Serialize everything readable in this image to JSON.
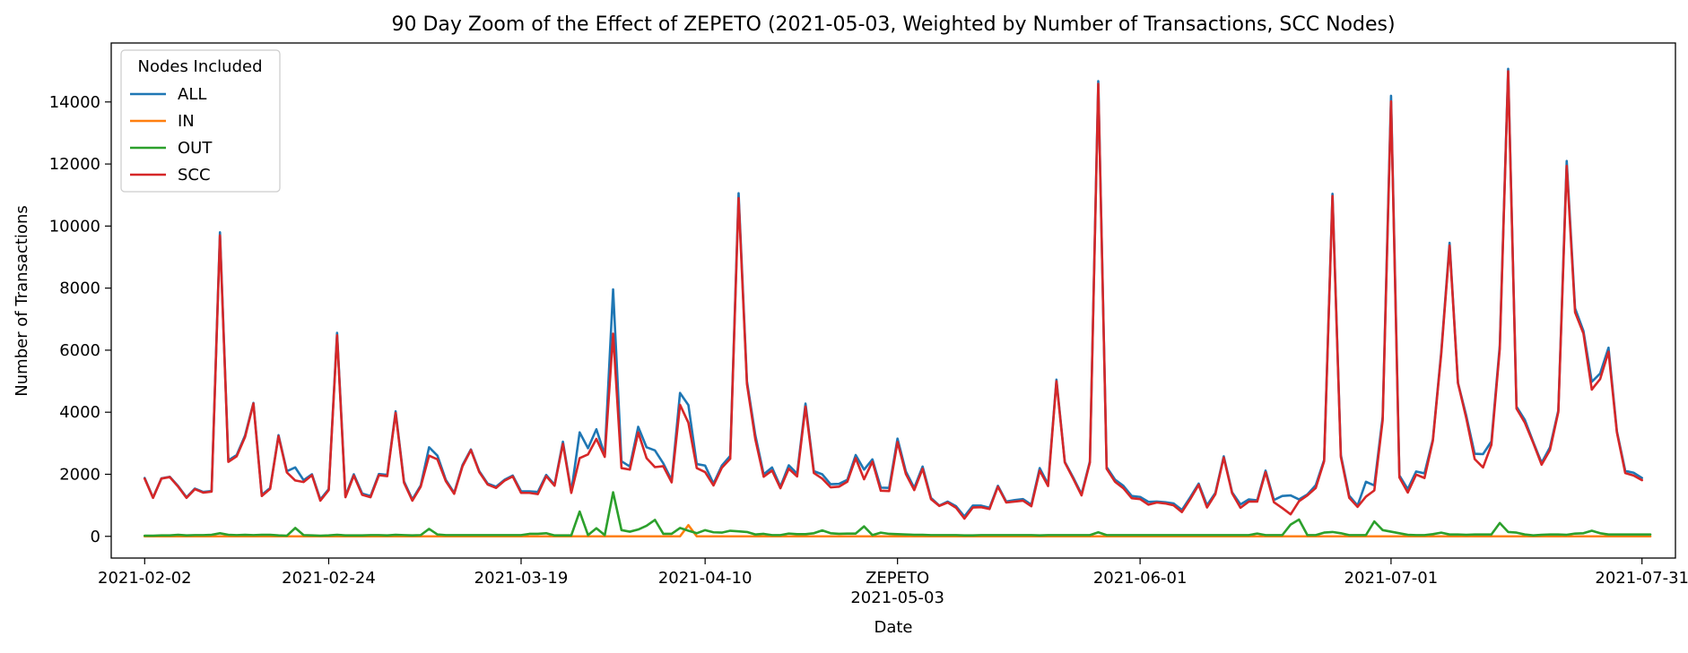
{
  "chart_data": {
    "type": "line",
    "title": "90 Day Zoom of the Effect of ZEPETO (2021-05-03, Weighted by Number of Transactions, SCC Nodes)",
    "xlabel": "Date",
    "ylabel": "Number of Transactions",
    "x_start": "2021-02-02",
    "x_end": "2021-07-31",
    "xlim": [
      "2021-01-29",
      "2021-08-04"
    ],
    "ylim": [
      -700,
      15900
    ],
    "x_ticks": [
      {
        "date": "2021-02-02",
        "label": "2021-02-02"
      },
      {
        "date": "2021-02-24",
        "label": "2021-02-24"
      },
      {
        "date": "2021-03-19",
        "label": "2021-03-19"
      },
      {
        "date": "2021-04-10",
        "label": "2021-04-10"
      },
      {
        "date": "2021-05-03",
        "label": "ZEPETO",
        "label2": "2021-05-03"
      },
      {
        "date": "2021-06-01",
        "label": "2021-06-01"
      },
      {
        "date": "2021-07-01",
        "label": "2021-07-01"
      },
      {
        "date": "2021-07-31",
        "label": "2021-07-31"
      }
    ],
    "y_ticks": [
      0,
      2000,
      4000,
      6000,
      8000,
      10000,
      12000,
      14000
    ],
    "y_tick_labels": [
      "0",
      "2000",
      "4000",
      "6000",
      "8000",
      "10000",
      "12000",
      "14000"
    ],
    "grid": false,
    "legend": {
      "title": "Nodes Included",
      "position": "top-left"
    },
    "series": [
      {
        "name": "ALL",
        "color": "#1f77b4",
        "values": [
          1880,
          1250,
          1870,
          1920,
          1620,
          1260,
          1540,
          1430,
          1460,
          9800,
          2450,
          2620,
          3250,
          4300,
          1340,
          1560,
          3260,
          2100,
          2220,
          1810,
          2000,
          1190,
          1520,
          6560,
          1300,
          2000,
          1380,
          1300,
          2010,
          1980,
          4030,
          1770,
          1190,
          1640,
          2870,
          2600,
          1820,
          1400,
          2300,
          2800,
          2100,
          1700,
          1600,
          1820,
          1960,
          1450,
          1450,
          1430,
          1980,
          1660,
          3050,
          1440,
          3350,
          2840,
          3450,
          2630,
          7960,
          2420,
          2250,
          3530,
          2870,
          2770,
          2350,
          1810,
          4620,
          4230,
          2330,
          2280,
          1700,
          2280,
          2590,
          11060,
          5000,
          3260,
          2000,
          2220,
          1600,
          2290,
          2020,
          4280,
          2100,
          2000,
          1680,
          1690,
          1820,
          2620,
          2150,
          2480,
          1570,
          1560,
          3150,
          2090,
          1560,
          2250,
          1240,
          990,
          1120,
          970,
          640,
          990,
          990,
          920,
          1630,
          1120,
          1170,
          1200,
          1020,
          2200,
          1680,
          5050,
          2400,
          1900,
          1360,
          2420,
          14670,
          2230,
          1830,
          1630,
          1300,
          1270,
          1110,
          1120,
          1100,
          1060,
          850,
          1260,
          1700,
          1000,
          1400,
          2580,
          1420,
          1030,
          1190,
          1160,
          2120,
          1170,
          1300,
          1320,
          1190,
          1350,
          1650,
          2460,
          11040,
          2620,
          1310,
          990,
          1760,
          1640,
          3850,
          14200,
          1960,
          1520,
          2090,
          2030,
          3120,
          5940,
          9460,
          4950,
          3880,
          2660,
          2650,
          3060,
          6150,
          15070,
          4180,
          3750,
          3040,
          2370,
          2870,
          4060,
          12100,
          7350,
          6620,
          4980,
          5250,
          6080,
          3390,
          2110,
          2050,
          1880
        ]
      },
      {
        "name": "IN",
        "color": "#ff7f0e",
        "values": [
          0,
          0,
          0,
          0,
          0,
          0,
          0,
          0,
          0,
          0,
          0,
          0,
          0,
          0,
          0,
          0,
          0,
          0,
          0,
          0,
          0,
          0,
          0,
          0,
          0,
          0,
          0,
          0,
          0,
          0,
          0,
          0,
          0,
          0,
          0,
          0,
          0,
          0,
          0,
          0,
          0,
          0,
          0,
          0,
          0,
          0,
          0,
          0,
          0,
          0,
          0,
          0,
          0,
          0,
          0,
          0,
          0,
          0,
          0,
          0,
          0,
          0,
          0,
          0,
          0,
          360,
          0,
          0,
          0,
          0,
          0,
          0,
          0,
          0,
          0,
          0,
          0,
          0,
          0,
          0,
          0,
          0,
          0,
          0,
          0,
          0,
          0,
          0,
          0,
          0,
          0,
          0,
          0,
          0,
          0,
          0,
          0,
          0,
          0,
          0,
          0,
          0,
          0,
          0,
          0,
          0,
          0,
          0,
          0,
          0,
          0,
          0,
          0,
          0,
          0,
          0,
          0,
          0,
          0,
          0,
          0,
          0,
          0,
          0,
          0,
          0,
          0,
          0,
          0,
          0,
          0,
          0,
          0,
          0,
          0,
          0,
          0,
          0,
          0,
          0,
          0,
          0,
          0,
          0,
          0,
          0,
          0,
          0,
          0,
          0,
          0,
          0,
          0,
          0,
          0,
          0,
          0,
          0,
          0,
          0,
          0,
          0,
          0,
          0,
          0,
          0,
          0,
          0,
          0,
          0,
          0,
          0,
          0,
          0,
          0,
          0,
          0,
          0,
          0,
          0,
          0
        ]
      },
      {
        "name": "OUT",
        "color": "#2ca02c",
        "values": [
          20,
          20,
          30,
          30,
          50,
          30,
          40,
          40,
          50,
          100,
          50,
          40,
          50,
          40,
          50,
          50,
          30,
          20,
          270,
          40,
          30,
          20,
          30,
          50,
          30,
          30,
          30,
          40,
          40,
          30,
          50,
          40,
          30,
          40,
          240,
          60,
          40,
          40,
          40,
          40,
          40,
          40,
          40,
          40,
          40,
          40,
          80,
          80,
          100,
          30,
          30,
          30,
          800,
          40,
          260,
          40,
          1420,
          200,
          150,
          220,
          340,
          530,
          80,
          80,
          270,
          180,
          100,
          200,
          130,
          120,
          180,
          160,
          140,
          60,
          80,
          40,
          40,
          90,
          70,
          70,
          100,
          190,
          100,
          80,
          90,
          90,
          320,
          40,
          120,
          80,
          70,
          60,
          50,
          50,
          40,
          40,
          40,
          40,
          30,
          30,
          40,
          40,
          40,
          40,
          40,
          40,
          40,
          30,
          40,
          40,
          40,
          40,
          40,
          40,
          130,
          40,
          40,
          40,
          40,
          40,
          40,
          40,
          40,
          40,
          40,
          40,
          40,
          40,
          40,
          40,
          40,
          40,
          40,
          90,
          40,
          40,
          40,
          380,
          540,
          40,
          40,
          120,
          140,
          100,
          40,
          40,
          40,
          480,
          200,
          150,
          100,
          50,
          40,
          40,
          70,
          120,
          60,
          60,
          50,
          60,
          60,
          60,
          430,
          140,
          120,
          60,
          30,
          50,
          60,
          60,
          50,
          90,
          100,
          180,
          100,
          60,
          60,
          60,
          60,
          60,
          60
        ]
      },
      {
        "name": "SCC",
        "color": "#d62728",
        "values": [
          1860,
          1240,
          1860,
          1910,
          1600,
          1240,
          1520,
          1410,
          1440,
          9700,
          2400,
          2580,
          3200,
          4280,
          1300,
          1530,
          3230,
          2060,
          1800,
          1750,
          1970,
          1150,
          1490,
          6480,
          1260,
          1960,
          1340,
          1260,
          1970,
          1940,
          3980,
          1730,
          1150,
          1600,
          2600,
          2480,
          1780,
          1370,
          2260,
          2780,
          2070,
          1670,
          1560,
          1790,
          1930,
          1400,
          1400,
          1360,
          1940,
          1630,
          2980,
          1400,
          2520,
          2640,
          3140,
          2560,
          6530,
          2200,
          2150,
          3350,
          2520,
          2230,
          2260,
          1740,
          4240,
          3660,
          2200,
          2070,
          1640,
          2210,
          2500,
          10900,
          4910,
          3130,
          1920,
          2120,
          1550,
          2180,
          1930,
          4180,
          2040,
          1860,
          1580,
          1600,
          1760,
          2520,
          1840,
          2410,
          1470,
          1460,
          3040,
          2010,
          1490,
          2180,
          1200,
          980,
          1090,
          920,
          570,
          930,
          940,
          880,
          1600,
          1090,
          1120,
          1150,
          970,
          2120,
          1620,
          5000,
          2380,
          1860,
          1320,
          2380,
          14580,
          2180,
          1760,
          1550,
          1230,
          1200,
          1020,
          1090,
          1060,
          1000,
          780,
          1200,
          1660,
          930,
          1360,
          2540,
          1390,
          920,
          1120,
          1120,
          2070,
          1100,
          910,
          710,
          1130,
          1320,
          1560,
          2420,
          10970,
          2560,
          1240,
          950,
          1280,
          1480,
          3740,
          14020,
          1900,
          1410,
          1990,
          1880,
          3080,
          5870,
          9370,
          4940,
          3800,
          2490,
          2220,
          2950,
          6040,
          14990,
          4120,
          3660,
          3010,
          2310,
          2780,
          4010,
          11940,
          7220,
          6540,
          4730,
          5070,
          5950,
          3350,
          2040,
          1960,
          1810
        ]
      }
    ]
  }
}
